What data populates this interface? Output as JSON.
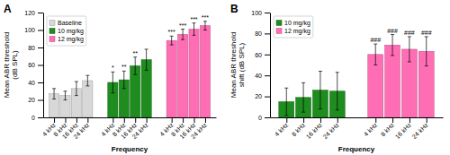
{
  "chart_data": [
    {
      "type": "bar",
      "title": "A",
      "ylabel": "Mean ABR threshold\n(dB SPL)",
      "xlabel": "Frequency",
      "categories": [
        "4 kHz",
        "8 kHz",
        "16 kHz",
        "24 kHz"
      ],
      "series": [
        {
          "name": "Baseline",
          "color": "#d8d8d8",
          "values": [
            27,
            25,
            33,
            42
          ],
          "errors": [
            6,
            5,
            8,
            6
          ]
        },
        {
          "name": "10 mg/kg",
          "color": "#1e8c1e",
          "values": [
            40,
            43,
            59,
            66
          ],
          "errors": [
            12,
            10,
            10,
            12
          ],
          "annotations": [
            "*",
            "**",
            "**",
            null
          ]
        },
        {
          "name": "12 mg/kg",
          "color": "#ff6eb4",
          "values": [
            88,
            95,
            101,
            105
          ],
          "errors": [
            5,
            6,
            7,
            5
          ],
          "annotations": [
            "***",
            "***",
            "***",
            "***"
          ]
        }
      ],
      "ylim": [
        0,
        120
      ],
      "yticks": [
        0,
        20,
        40,
        60,
        80,
        100,
        120
      ],
      "grid": false,
      "legend": "upper left"
    },
    {
      "type": "bar",
      "title": "B",
      "ylabel": "Mean ABR threshold\nshift (dB SPL)",
      "xlabel": "Frequency",
      "categories": [
        "4 kHz",
        "8 kHz",
        "16 kHz",
        "24 kHz"
      ],
      "series": [
        {
          "name": "10 mg/kg",
          "color": "#1e8c1e",
          "values": [
            15,
            19,
            26,
            25
          ],
          "errors": [
            13,
            14,
            18,
            18
          ]
        },
        {
          "name": "12 mg/kg",
          "color": "#ff6eb4",
          "values": [
            60,
            69,
            65,
            63
          ],
          "errors": [
            10,
            10,
            12,
            14
          ],
          "annotations": [
            "###",
            "###",
            "###",
            "###"
          ]
        }
      ],
      "ylim": [
        0,
        100
      ],
      "yticks": [
        0,
        20,
        40,
        60,
        80,
        100
      ],
      "grid": false,
      "legend": "upper left"
    }
  ]
}
